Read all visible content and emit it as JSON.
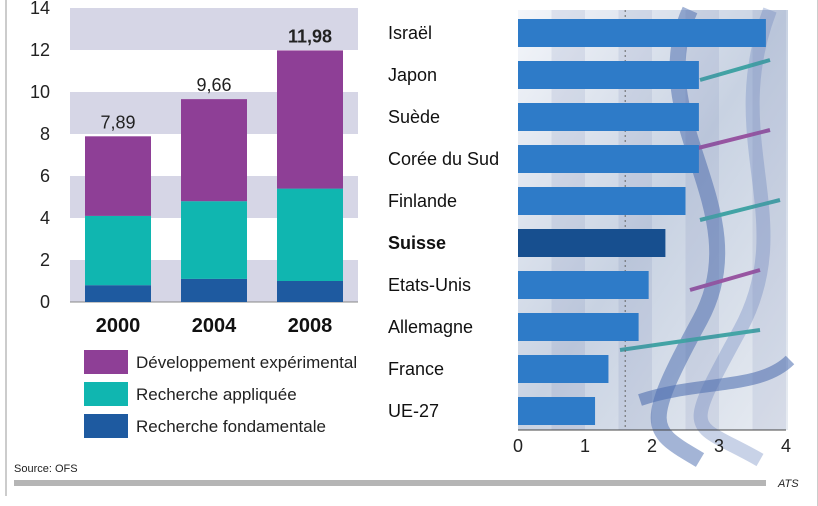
{
  "chart_data": [
    {
      "type": "bar",
      "stacked": true,
      "categories": [
        "2000",
        "2004",
        "2008"
      ],
      "series": [
        {
          "name": "Recherche fondamentale",
          "values": [
            0.8,
            1.1,
            1.0
          ],
          "color": "#1e5aa0"
        },
        {
          "name": "Recherche appliquée",
          "values": [
            3.3,
            3.7,
            4.4
          ],
          "color": "#10b6b0"
        },
        {
          "name": "Développement expérimental",
          "values": [
            3.79,
            4.86,
            6.58
          ],
          "color": "#8e3f96"
        }
      ],
      "totals": [
        "7,89",
        "9,66",
        "11,98"
      ],
      "yticks": [
        "0",
        "2",
        "4",
        "6",
        "8",
        "10",
        "12",
        "14"
      ],
      "ylim": [
        0,
        14
      ],
      "legend_order": [
        "Développement expérimental",
        "Recherche appliquée",
        "Recherche fondamentale"
      ],
      "legend_position": "bottom",
      "band_color": "#d6d6e6"
    },
    {
      "type": "bar",
      "orientation": "horizontal",
      "categories": [
        "Israël",
        "Japon",
        "Suède",
        "Corée du Sud",
        "Finlande",
        "Suisse",
        "Etats-Unis",
        "Allemagne",
        "France",
        "UE-27"
      ],
      "values": [
        3.7,
        2.7,
        2.7,
        2.7,
        2.5,
        2.2,
        1.95,
        1.8,
        1.35,
        1.15
      ],
      "highlight": "Suisse",
      "xticks": [
        "0",
        "1",
        "2",
        "3",
        "4"
      ],
      "xlim": [
        0,
        4
      ],
      "reference_line": 1.6,
      "bar_color": "#2e7bc8",
      "highlight_color": "#174f8f"
    }
  ],
  "footer": {
    "source": "Source: OFS",
    "agency": "ATS"
  }
}
